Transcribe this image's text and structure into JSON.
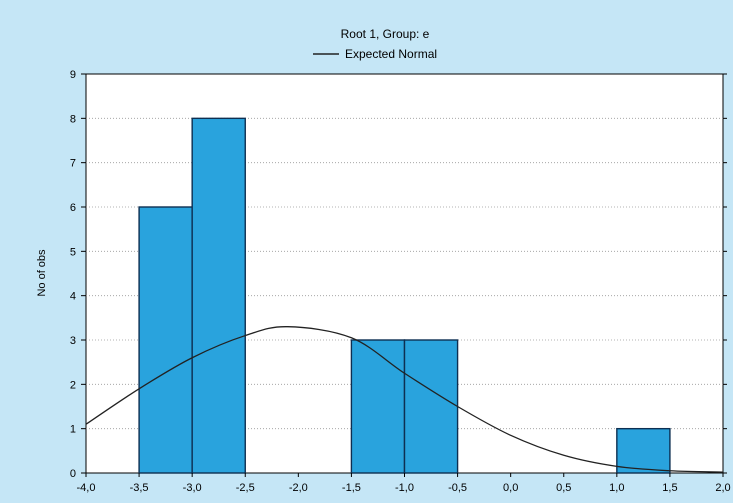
{
  "chart_data": {
    "type": "bar",
    "title": "Root  1, Group: e",
    "xlabel": "",
    "ylabel": "No of obs",
    "legend": {
      "placement": "top-center",
      "entries": [
        {
          "label": "Expected Normal",
          "kind": "line",
          "color": "#222222"
        }
      ]
    },
    "xlim": [
      -4.0,
      2.0
    ],
    "ylim": [
      0,
      9
    ],
    "x_ticks": [
      "-4,0",
      "-3,5",
      "-3,0",
      "-2,5",
      "-2,0",
      "-1,5",
      "-1,0",
      "-0,5",
      "0,0",
      "0,5",
      "1,0",
      "1,5",
      "2,0"
    ],
    "y_ticks": [
      "0",
      "1",
      "2",
      "3",
      "4",
      "5",
      "6",
      "7",
      "8",
      "9"
    ],
    "grid": {
      "horizontal": true,
      "vertical": false,
      "style": "dotted"
    },
    "bins": [
      {
        "from": -3.5,
        "to": -3.0,
        "count": 6
      },
      {
        "from": -3.0,
        "to": -2.5,
        "count": 8
      },
      {
        "from": -1.5,
        "to": -1.0,
        "count": 3
      },
      {
        "from": -1.0,
        "to": -0.5,
        "count": 3
      },
      {
        "from": 1.0,
        "to": 1.5,
        "count": 1
      }
    ],
    "expected_normal": {
      "x": [
        -4.0,
        -3.5,
        -3.0,
        -2.5,
        -2.1,
        -1.5,
        -1.0,
        -0.5,
        0.0,
        0.5,
        1.0,
        1.5,
        2.0
      ],
      "y": [
        1.1,
        1.9,
        2.6,
        3.1,
        3.3,
        3.05,
        2.25,
        1.5,
        0.85,
        0.4,
        0.15,
        0.05,
        0.02
      ]
    },
    "colors": {
      "bar_fill": "#29a3dd",
      "bar_stroke": "#0d2f52",
      "curve": "#222222",
      "background": "#c5e6f6",
      "plot_background": "#ffffff"
    }
  }
}
